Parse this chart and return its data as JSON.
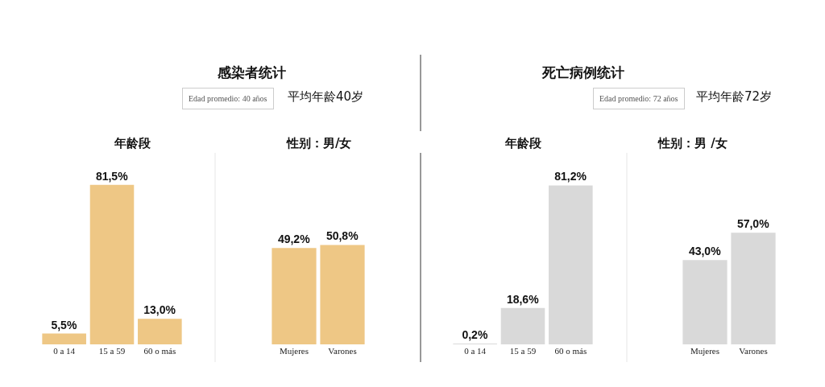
{
  "chart_data": [
    {
      "type": "bar",
      "title": "年龄段",
      "categories": [
        "0 a 14",
        "15 a 59",
        "60 o más"
      ],
      "values": [
        5.5,
        81.5,
        13.0
      ],
      "color": "#eec785",
      "value_labels": [
        "5,5%",
        "81,5%",
        "13,0%"
      ],
      "annotations": [
        "感染者统计",
        "Edad promedio: 40 años",
        "平均年龄40岁"
      ]
    },
    {
      "type": "bar",
      "title": "性别：男/女",
      "categories": [
        "Mujeres",
        "Varones"
      ],
      "values": [
        49.2,
        50.8
      ],
      "color": "#eec785",
      "value_labels": [
        "49,2%",
        "50,8%"
      ]
    },
    {
      "type": "bar",
      "title": "年龄段",
      "categories": [
        "0 a 14",
        "15 a 59",
        "60 o más"
      ],
      "values": [
        0.2,
        18.6,
        81.2
      ],
      "color": "#d9d9d9",
      "value_labels": [
        "0,2%",
        "18,6%",
        "81,2%"
      ],
      "annotations": [
        "死亡病例统计",
        "Edad promedio: 72 años",
        "平均年龄72岁"
      ]
    },
    {
      "type": "bar",
      "title": "性别：男 /女",
      "categories": [
        "Mujeres",
        "Varones"
      ],
      "values": [
        43.0,
        57.0
      ],
      "color": "#d9d9d9",
      "value_labels": [
        "43,0%",
        "57,0%"
      ]
    }
  ]
}
